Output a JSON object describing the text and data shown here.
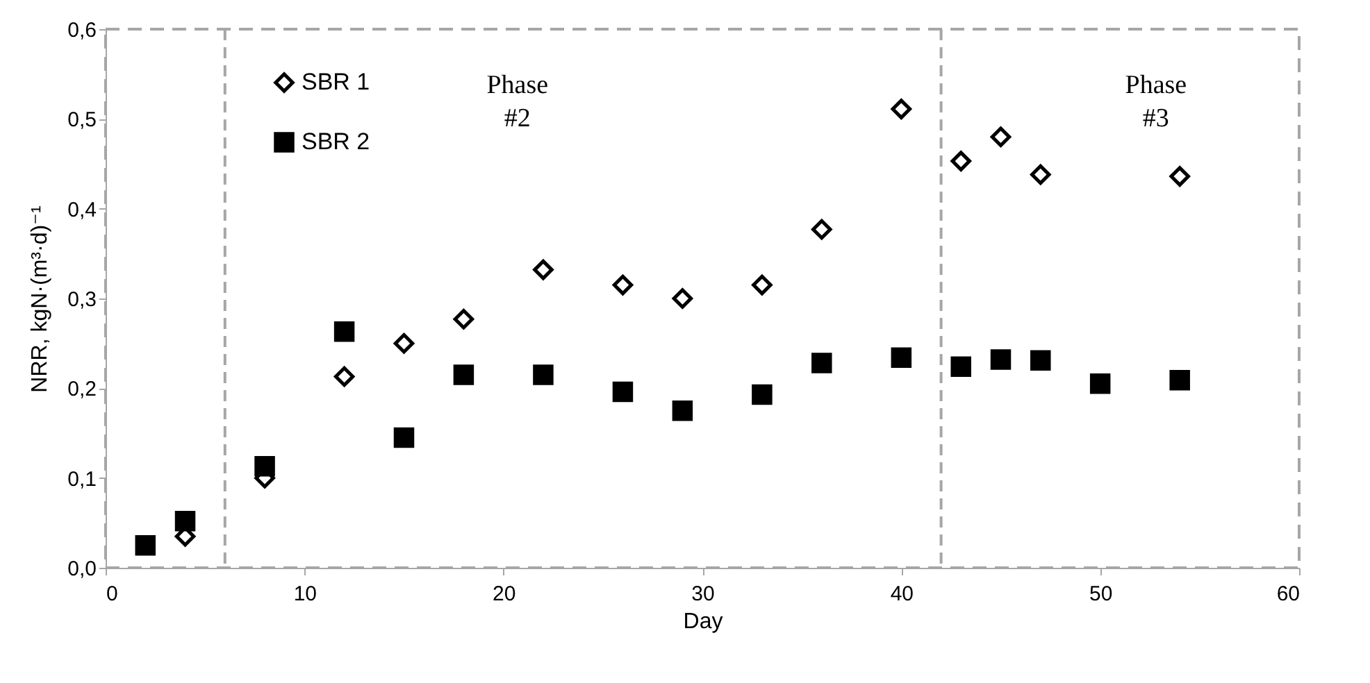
{
  "chart_data": {
    "type": "scatter",
    "xlabel": "Day",
    "ylabel": "NRR, kgN·(m³·d)⁻¹",
    "legend": "top left",
    "grid": false,
    "xlim": [
      0,
      60
    ],
    "xticks": [
      0,
      10,
      20,
      30,
      40,
      50,
      60
    ],
    "ylim": [
      0,
      0.6
    ],
    "yticks": [
      {
        "value": 0,
        "label": "0,0"
      },
      {
        "value": 0.1,
        "label": "0,1"
      },
      {
        "value": 0.2,
        "label": "0,2"
      },
      {
        "value": 0.3,
        "label": "0,3"
      },
      {
        "value": 0.4,
        "label": "0,4"
      },
      {
        "value": 0.5,
        "label": "0,5"
      },
      {
        "value": 0.6,
        "label": "0,6"
      }
    ],
    "series": [
      {
        "name": "SBR 1",
        "color": "#000000",
        "marker": "diamond",
        "x": [
          4,
          8,
          12,
          15,
          18,
          22,
          26,
          29,
          33,
          36,
          40,
          43,
          45,
          47,
          54
        ],
        "values": [
          0.035,
          0.1,
          0.213,
          0.25,
          0.277,
          0.332,
          0.315,
          0.3,
          0.315,
          0.377,
          0.511,
          0.453,
          0.48,
          0.438,
          0.436
        ]
      },
      {
        "name": "SBR 2",
        "color": "#000000",
        "marker": "square",
        "x": [
          2,
          4,
          8,
          12,
          15,
          18,
          22,
          26,
          29,
          33,
          36,
          40,
          43,
          45,
          47,
          50,
          54
        ],
        "values": [
          0.025,
          0.052,
          0.113,
          0.263,
          0.145,
          0.215,
          0.215,
          0.196,
          0.175,
          0.193,
          0.228,
          0.234,
          0.224,
          0.232,
          0.231,
          0.205,
          0.209
        ]
      }
    ],
    "ref_lines": [
      {
        "axis": "x",
        "value": 6,
        "color": "#a6a6a6",
        "line_style": "dashed"
      },
      {
        "axis": "x",
        "value": 42,
        "color": "#a6a6a6",
        "line_style": "dashed"
      }
    ],
    "annotations": [
      "Phase #2",
      "Phase #3"
    ]
  }
}
